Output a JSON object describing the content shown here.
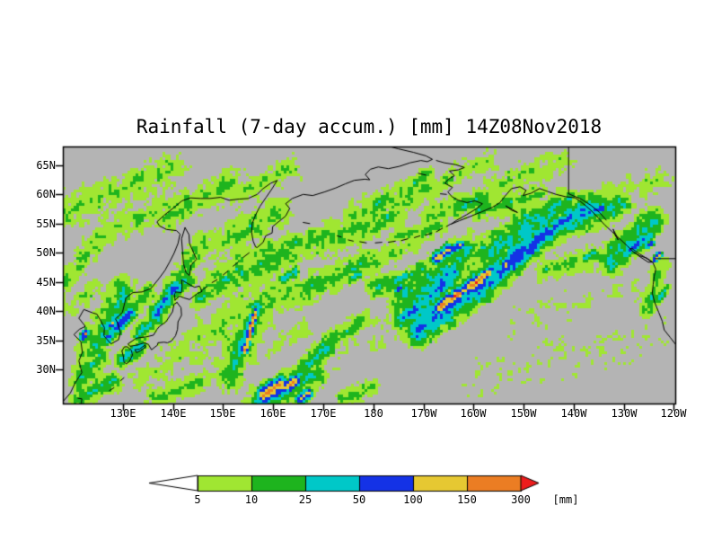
{
  "chart_data": {
    "type": "heatmap",
    "title": "Rainfall (7-day accum.) [mm] 14Z08Nov2018",
    "variable": "Rainfall",
    "accumulation": "7-day accum.",
    "units": "mm",
    "valid_time": "14Z08Nov2018",
    "lon_range_deg_east": [
      118,
      240.3
    ],
    "lat_range_deg_north": [
      24.2,
      68.2
    ],
    "lat_ticks": [
      [
        65,
        "65N"
      ],
      [
        60,
        "60N"
      ],
      [
        55,
        "55N"
      ],
      [
        50,
        "50N"
      ],
      [
        45,
        "45N"
      ],
      [
        40,
        "40N"
      ],
      [
        35,
        "35N"
      ],
      [
        30,
        "30N"
      ]
    ],
    "lon_ticks": [
      [
        130,
        "130E"
      ],
      [
        140,
        "140E"
      ],
      [
        150,
        "150E"
      ],
      [
        160,
        "160E"
      ],
      [
        170,
        "170E"
      ],
      [
        180,
        "180"
      ],
      [
        190,
        "170W"
      ],
      [
        200,
        "160W"
      ],
      [
        210,
        "150W"
      ],
      [
        220,
        "140W"
      ],
      [
        230,
        "130W"
      ],
      [
        240,
        "120W"
      ]
    ],
    "colorbar": {
      "labels": [
        "5",
        "10",
        "25",
        "50",
        "100",
        "150",
        "300"
      ],
      "thresholds_mm": [
        5,
        10,
        25,
        50,
        100,
        150,
        300
      ],
      "unit_label": "[mm]",
      "colors": [
        "#ffffff",
        "#a0e632",
        "#1eb41e",
        "#00c8c8",
        "#1432e6",
        "#e6c832",
        "#eb7d23",
        "#ee1c1c"
      ]
    },
    "palette": {
      "nodata": "#b4b4b4",
      "levels": [
        "#a0e632",
        "#1eb41e",
        "#00c8c8",
        "#1432e6",
        "#e6c832",
        "#eb7d23",
        "#ee1c1c"
      ]
    },
    "features": [
      [
        124,
        33,
        130,
        43,
        4,
        3
      ],
      [
        127,
        35.5,
        131.5,
        39.5,
        1.8,
        4.6
      ],
      [
        136.5,
        39.5,
        140.5,
        44,
        2.2,
        4.2
      ],
      [
        139,
        42.5,
        143,
        45.5,
        2,
        3.4
      ],
      [
        129.5,
        31.5,
        133.5,
        34,
        2,
        3.6
      ],
      [
        121,
        28,
        126,
        33,
        3,
        2.6
      ],
      [
        122,
        35.5,
        122.6,
        36.2,
        1,
        5.8
      ],
      [
        127.6,
        37.6,
        128.2,
        38.2,
        0.8,
        5.4
      ],
      [
        133,
        36,
        137,
        39,
        2.2,
        3.2
      ],
      [
        131,
        40,
        135,
        43,
        2.5,
        2.8
      ],
      [
        121,
        25,
        128,
        28,
        2.5,
        2.8
      ],
      [
        123.3,
        26,
        124.2,
        26.6,
        1,
        3.6
      ],
      [
        136,
        25,
        146,
        28,
        2.5,
        2.2
      ],
      [
        134,
        29,
        146,
        35,
        4,
        1.5
      ],
      [
        151,
        29,
        158,
        42,
        4.5,
        2.4
      ],
      [
        152.5,
        31,
        157,
        41,
        2.2,
        4
      ],
      [
        154.3,
        33,
        156.6,
        40,
        1,
        6.3
      ],
      [
        155.5,
        37.5,
        155.9,
        38.8,
        0.55,
        7.2
      ],
      [
        158,
        25.5,
        161.5,
        27.5,
        2.2,
        6.4
      ],
      [
        162.5,
        27,
        164.5,
        28,
        1.8,
        6
      ],
      [
        165.5,
        25,
        167,
        26,
        1.5,
        5.2
      ],
      [
        157,
        24.5,
        168,
        29,
        3.8,
        3
      ],
      [
        165,
        29,
        172,
        35,
        2.6,
        3.1
      ],
      [
        171,
        34.5,
        178,
        38.5,
        2.2,
        2.7
      ],
      [
        174,
        25,
        180,
        27,
        2,
        2.2
      ],
      [
        146,
        35,
        160,
        44,
        5,
        1.8
      ],
      [
        159,
        41.5,
        175,
        46.5,
        3.5,
        2.2
      ],
      [
        149,
        45,
        164,
        50,
        3.8,
        2.5
      ],
      [
        162,
        45.5,
        164.5,
        47,
        1.4,
        3.6
      ],
      [
        167,
        44,
        180,
        48.5,
        3.2,
        2.5
      ],
      [
        175.5,
        45.5,
        177.5,
        46.5,
        1.2,
        3.5
      ],
      [
        180,
        44,
        190,
        47,
        2.6,
        2.7
      ],
      [
        183.5,
        45,
        188,
        46.5,
        1.3,
        3.7
      ],
      [
        184.8,
        43.6,
        185.6,
        44.2,
        0.7,
        5.1
      ],
      [
        149,
        51.5,
        161,
        57,
        3.6,
        2.3
      ],
      [
        154,
        49.5,
        169,
        52.5,
        2.6,
        2.3
      ],
      [
        167,
        51.5,
        184,
        56.5,
        3.8,
        2.3
      ],
      [
        176,
        56.5,
        191,
        61.5,
        3.6,
        2.1
      ],
      [
        180.5,
        58.5,
        182.5,
        59.5,
        1.3,
        3.2
      ],
      [
        188.5,
        62,
        191,
        63.5,
        1.5,
        3
      ],
      [
        192,
        56.5,
        202,
        59.5,
        3,
        2.4
      ],
      [
        197.5,
        57.5,
        199.5,
        58.5,
        1.2,
        3.5
      ],
      [
        140,
        44.5,
        146,
        52,
        2.8,
        2.3
      ],
      [
        142.5,
        46.5,
        144,
        48,
        1.2,
        3.3
      ],
      [
        145,
        42,
        152,
        46,
        2.4,
        2.5
      ],
      [
        119,
        57.5,
        140,
        64,
        4,
        1.9
      ],
      [
        127,
        54.5,
        148,
        60,
        3.6,
        1.8
      ],
      [
        118,
        45,
        126,
        53,
        3,
        1.9
      ],
      [
        139,
        56,
        152,
        62.5,
        3.2,
        2
      ],
      [
        149,
        60.5,
        152,
        62.5,
        1.4,
        3.1
      ],
      [
        152,
        60,
        164,
        64.5,
        3,
        1.9
      ],
      [
        128,
        60,
        134,
        63,
        2,
        2.4
      ],
      [
        186,
        38.5,
        196,
        46.5,
        3.2,
        4
      ],
      [
        189,
        37,
        206,
        47.5,
        4.2,
        4.3
      ],
      [
        193,
        40.5,
        203,
        46.5,
        1.7,
        6.3
      ],
      [
        195.5,
        42,
        196.5,
        42.8,
        0.6,
        7.3
      ],
      [
        200,
        44.5,
        201,
        45.2,
        0.6,
        7.2
      ],
      [
        203.5,
        45.5,
        213.5,
        53,
        3.6,
        4.5
      ],
      [
        212,
        52,
        223,
        57.8,
        3.4,
        4.2
      ],
      [
        192.5,
        48.8,
        195,
        50.5,
        1.6,
        5.4
      ],
      [
        196,
        50.5,
        197.5,
        51.3,
        1.2,
        5.1
      ],
      [
        186,
        42,
        199,
        50,
        4.5,
        3
      ],
      [
        203,
        50,
        216,
        56.5,
        4.2,
        3.3
      ],
      [
        201,
        57,
        213,
        60,
        2.6,
        2.4
      ],
      [
        209,
        55,
        219,
        59,
        3,
        3
      ],
      [
        215,
        54,
        229,
        58.3,
        3.6,
        3.3
      ],
      [
        218.5,
        55.5,
        226,
        57.8,
        1.7,
        4.3
      ],
      [
        227,
        48.5,
        236,
        55.5,
        3.4,
        3.4
      ],
      [
        230.5,
        50,
        235.5,
        53,
        1.6,
        4.3
      ],
      [
        236.2,
        48.8,
        237.2,
        49.6,
        0.9,
        6.1
      ],
      [
        234.8,
        51,
        235.8,
        51.8,
        0.8,
        5.2
      ],
      [
        234.5,
        40,
        237.5,
        47.5,
        2.2,
        2.4
      ],
      [
        237,
        42,
        238.5,
        44,
        1.1,
        3.2
      ],
      [
        204,
        61.5,
        218,
        65.5,
        3,
        1.8
      ],
      [
        195,
        62.5,
        203,
        66,
        2.6,
        1.7
      ],
      [
        220.5,
        57.5,
        227,
        60,
        2.2,
        2.1
      ],
      [
        224,
        59,
        238,
        63,
        3,
        1.5
      ],
      [
        165,
        30,
        183,
        36.5,
        4.5,
        0.9
      ],
      [
        200,
        28,
        236,
        36,
        5,
        0.75
      ],
      [
        208,
        38,
        232,
        44,
        4,
        0.8
      ],
      [
        118,
        40,
        124,
        44,
        2.5,
        1.6
      ],
      [
        160,
        33,
        166,
        37,
        2.5,
        1.4
      ],
      [
        184,
        52.5,
        193,
        54.5,
        2.4,
        2.2
      ],
      [
        214,
        47,
        228,
        50,
        2.8,
        2.3
      ],
      [
        222,
        49,
        224,
        50,
        1.2,
        3.2
      ],
      [
        179,
        48.5,
        188,
        51.5,
        2.2,
        2
      ]
    ],
    "coastlines": [
      [
        118,
        24.5,
        119.5,
        26,
        120.5,
        27.8,
        121.8,
        29.5,
        121.2,
        31.5,
        121.9,
        33,
        121.6,
        34.8,
        120.2,
        36,
        121.3,
        36.9,
        122.5,
        37.4,
        121.2,
        38.8,
        122.2,
        40.3,
        124,
        39.7,
        124.8,
        39.5,
        125.4,
        38.6,
        126.3,
        37.2,
        126.2,
        35.8,
        127.6,
        34.4,
        129.1,
        35.1,
        129.5,
        36.3,
        129,
        37.9,
        128.5,
        38.7,
        129.9,
        39.8,
        130.6,
        42.3,
        132,
        43.2,
        133.8,
        43.3,
        135.6,
        43.9,
        137.2,
        45.6,
        138.4,
        47,
        139.3,
        48.4,
        140.2,
        49.9,
        141,
        51.6,
        141.4,
        53.2,
        140.7,
        53.8,
        138.7,
        54,
        137.3,
        54.6,
        136.8,
        55.3,
        138.2,
        56.4,
        140.1,
        57.7,
        141.8,
        58.9,
        143.5,
        59.4,
        145.5,
        59.3,
        147.4,
        59.3,
        149.5,
        59.5,
        151.2,
        59,
        153.2,
        59.2,
        155,
        59.3,
        156.8,
        60,
        158,
        61,
        159.5,
        61.9,
        160.8,
        62.4,
        159.8,
        61,
        158.6,
        59.5,
        157.4,
        58,
        156.5,
        56.5,
        155.8,
        55,
        155.7,
        53.5,
        156,
        52,
        156.5,
        51,
        156.8,
        50.9,
        158,
        51.8,
        158.5,
        52.9,
        159.8,
        53.4,
        159.9,
        54.5,
        161.2,
        55.4,
        162.5,
        56.3,
        163.3,
        57.6,
        162.5,
        58.4,
        163.8,
        59.3,
        166,
        60,
        167.9,
        59.8,
        170.2,
        60.4,
        172.5,
        61.1,
        174.4,
        61.8,
        176.2,
        62.4,
        178.3,
        62.6,
        179.3,
        62.5,
        178.4,
        63.4,
        179.4,
        64.3,
        181,
        64.7,
        183,
        64.4,
        185.2,
        64.8,
        187.3,
        65.4,
        189.5,
        65.8,
        190.8,
        65.6,
        191.8,
        66,
        190.5,
        66.6,
        188,
        67.2,
        185,
        67.8,
        182.8,
        68.3
      ],
      [
        192.6,
        65.8,
        194.2,
        65.4,
        196.4,
        65.1,
        198.2,
        64.6,
        197,
        64.2,
        195.2,
        64,
        196.2,
        63.2,
        195,
        62.6,
        194.3,
        61.9,
        195.8,
        61.2,
        194.9,
        60.4,
        195.7,
        59.6,
        197,
        59,
        198.7,
        58.6,
        200.3,
        58.9,
        201.8,
        58.4,
        200.5,
        57.5,
        198.6,
        56.5,
        196.7,
        55.6,
        195.5,
        54.9,
        197.2,
        55.5,
        199.3,
        56.2,
        201.6,
        57,
        203.8,
        57.8,
        205.3,
        58.6,
        206.2,
        59.6,
        207.6,
        61,
        209.3,
        61.3,
        210.5,
        60.7,
        209.9,
        59.8,
        211.5,
        60.2,
        213.2,
        61,
        214.8,
        60.5,
        216.5,
        60,
        218.4,
        59.6,
        220.3,
        59.4,
        221.2,
        58.9,
        222.5,
        58,
        223.8,
        57,
        225,
        55.9,
        226.3,
        54.7,
        227.7,
        53.6,
        229.2,
        52.4,
        230.7,
        51.2,
        232,
        50.1,
        233.2,
        49.5,
        234.6,
        49.1,
        235.8,
        48.4,
        236.4,
        47.2,
        236.1,
        46,
        235.9,
        44.6,
        235.7,
        43.1,
        236.2,
        41.5,
        237,
        39.8,
        237.7,
        38.3,
        238.1,
        36.8,
        239.3,
        35.5,
        240.3,
        34.4
      ],
      [
        140.8,
        41.5,
        141.6,
        40.6,
        141.7,
        39.3,
        141,
        38.2,
        140.9,
        36.9,
        140.5,
        35.8,
        139.7,
        34.9,
        138.9,
        34.6,
        138.2,
        34.7,
        137,
        34.6,
        136.9,
        34.2,
        135.7,
        33.4,
        135.1,
        34.3,
        134.3,
        34.6,
        132.8,
        34.2,
        131.4,
        34,
        131,
        34.4,
        132.7,
        35.4,
        134.6,
        35.6,
        136.1,
        35.9,
        136.8,
        36.9,
        137.3,
        37.4,
        138.6,
        38.2,
        139.9,
        39.9,
        140.2,
        41.2,
        140.8,
        41.5
      ],
      [
        140.4,
        41.9,
        140.3,
        42.8,
        140.5,
        43.3,
        141.7,
        43.2,
        141.8,
        44.3,
        141.7,
        45.4,
        142.8,
        44.8,
        144.3,
        44.1,
        145.3,
        44.3,
        145.8,
        43.4,
        144.8,
        43,
        143.3,
        42,
        142.1,
        42.3,
        141.3,
        42.6,
        140.4,
        41.9
      ],
      [
        129.8,
        33.2,
        130.3,
        33.9,
        130.9,
        33.9,
        131.7,
        33.3,
        131.9,
        32.5,
        131.3,
        31.4,
        130.7,
        31,
        130.2,
        31.3,
        130.1,
        32.2,
        129.8,
        33.2
      ],
      [
        132.4,
        33.4,
        133.3,
        33.5,
        134.4,
        34.2,
        134.6,
        33.9,
        133.6,
        33.3,
        132.7,
        32.9,
        132.4,
        33.4
      ],
      [
        142.4,
        54.3,
        143.2,
        53.1,
        143.3,
        51.6,
        144.7,
        48.9,
        143.6,
        47.9,
        143.3,
        46.1,
        142.6,
        46.6,
        142.1,
        48.1,
        141.9,
        50.3,
        141.7,
        52.4,
        142.4,
        54.3
      ],
      [
        206.5,
        58,
        207.8,
        57.4,
        208.8,
        56.9,
        207.6,
        57.3,
        206.5,
        58
      ],
      [
        231.7,
        50.7,
        233.2,
        49.8,
        234.8,
        48.9,
        235.7,
        48.4,
        234.9,
        48.4,
        233.3,
        49.3,
        231.9,
        50.2,
        231.3,
        50.7,
        231.7,
        50.7
      ],
      [
        227.9,
        54,
        228.4,
        53.2,
        228.9,
        52.2,
        228.3,
        53,
        227.9,
        54
      ],
      [
        121,
        25.1,
        121.8,
        25,
        121.7,
        24.3
      ]
    ],
    "island_dashes": [
      [
        145.9,
        43.7,
        146.8,
        44.2
      ],
      [
        147.8,
        44.9,
        148.8,
        45.4
      ],
      [
        150,
        46.2,
        151,
        46.9
      ],
      [
        152,
        47.7,
        153,
        48.4
      ],
      [
        154,
        49.2,
        155.2,
        50
      ],
      [
        172.8,
        52.9,
        173.6,
        52.7
      ],
      [
        175,
        52.2,
        176,
        52
      ],
      [
        177.3,
        51.9,
        178.6,
        51.7
      ],
      [
        180.4,
        51.7,
        181.7,
        51.8
      ],
      [
        183,
        51.8,
        184.4,
        52
      ],
      [
        185.6,
        52.1,
        186.9,
        52.4
      ],
      [
        188.2,
        52.6,
        189.3,
        52.9
      ],
      [
        190.4,
        53,
        191.7,
        53.4
      ],
      [
        192.6,
        53.6,
        193.8,
        54.2
      ],
      [
        194.6,
        54.5,
        195.4,
        54.9
      ],
      [
        189,
        63.6,
        190.5,
        63.3
      ],
      [
        193.4,
        60.1,
        194.6,
        60
      ],
      [
        166,
        55.2,
        167.3,
        55
      ],
      [
        127.3,
        26.4,
        128.2,
        26.9
      ],
      [
        129.5,
        28.1,
        130.2,
        28.6
      ]
    ],
    "borders": [
      [
        219,
        68.3,
        219,
        60.1
      ],
      [
        219,
        60.1,
        221.5,
        59.2,
        223.5,
        58.1,
        225.2,
        56.9,
        226.5,
        55.6
      ],
      [
        236.3,
        49,
        240.3,
        49
      ]
    ]
  }
}
